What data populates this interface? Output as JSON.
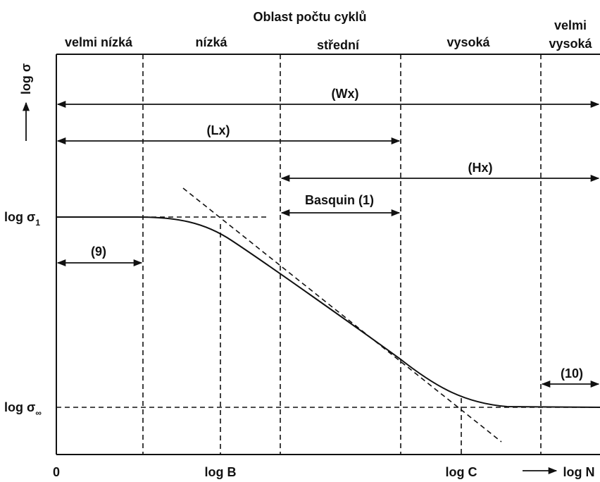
{
  "header": {
    "title": "Oblast počtu cyklů"
  },
  "regions": [
    "velmi nízká",
    "nízká",
    "střední",
    "vysoká",
    {
      "line1": "velmi",
      "line2": "vysoká"
    }
  ],
  "y_axis": {
    "label": "log σ",
    "ticks": [
      {
        "main": "log σ",
        "sub": "1"
      },
      {
        "main": "log σ",
        "sub": "∞"
      }
    ]
  },
  "x_axis": {
    "labels": [
      "0",
      "log B",
      "log C",
      "log N"
    ]
  },
  "ranges": [
    "(Wx)",
    "(Lx)",
    "(Hx)",
    "Basquin (1)",
    "(9)",
    "(10)"
  ]
}
